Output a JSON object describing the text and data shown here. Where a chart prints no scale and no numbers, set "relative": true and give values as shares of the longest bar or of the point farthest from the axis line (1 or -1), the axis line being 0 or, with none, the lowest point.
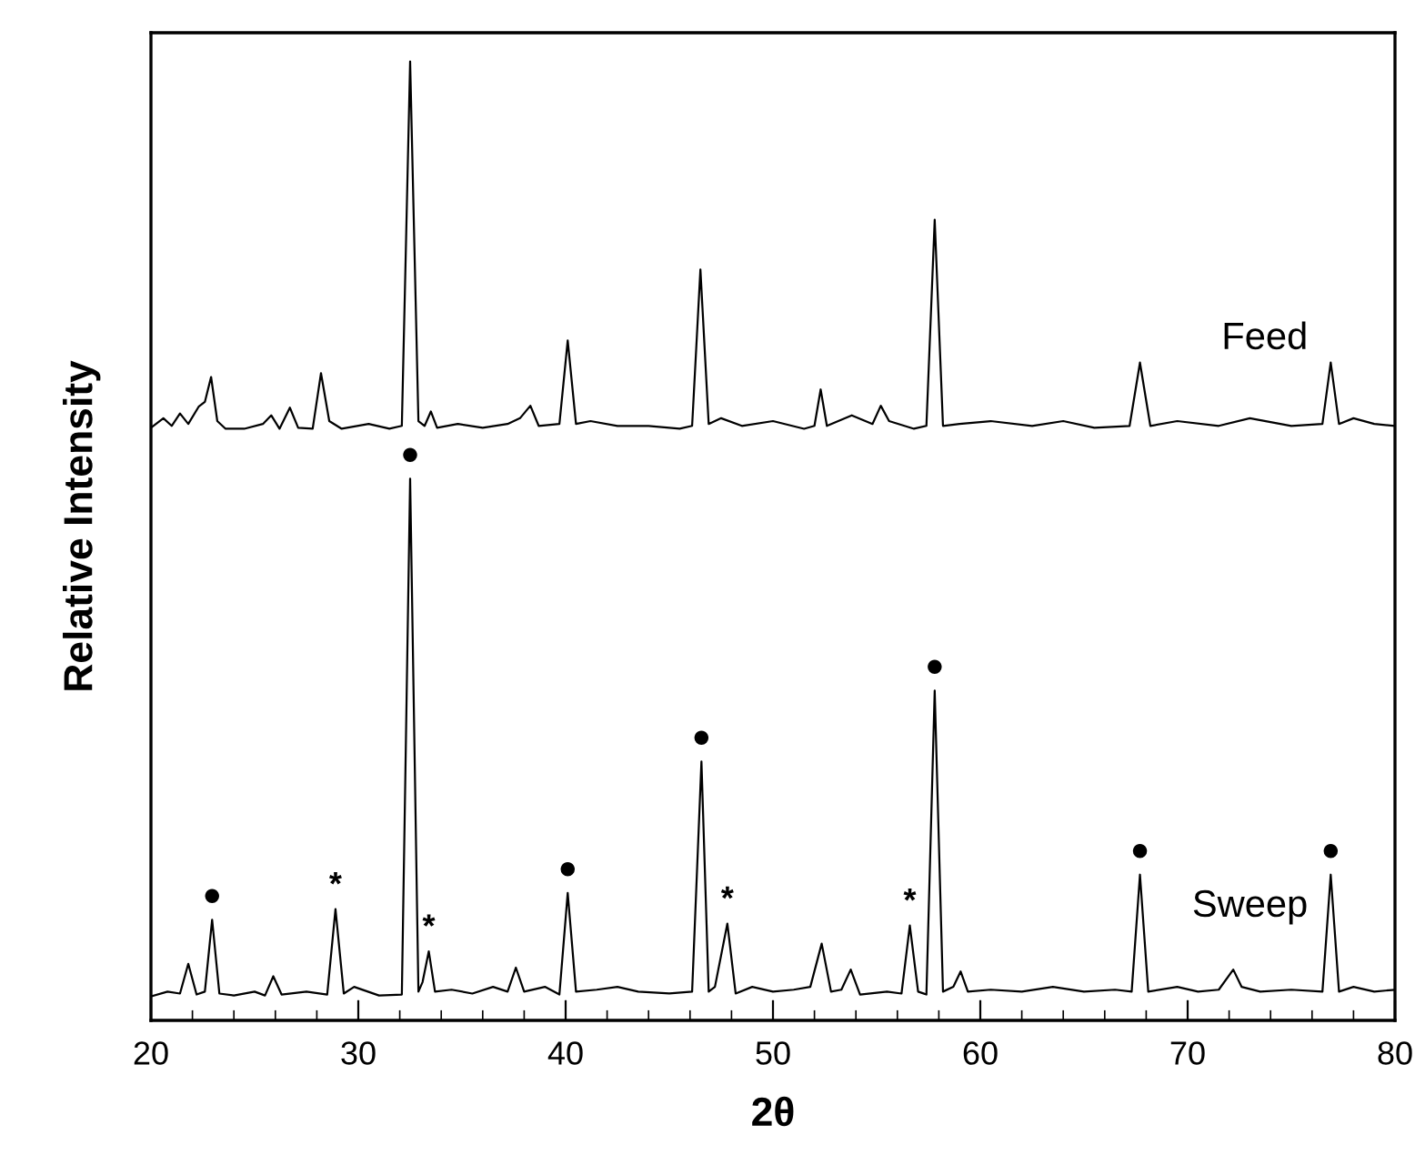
{
  "chart_data": {
    "type": "line",
    "relative": true,
    "xlabel": "2θ",
    "ylabel": "Relative Intensity",
    "xlim": [
      20,
      80
    ],
    "xticks": [
      20,
      30,
      40,
      50,
      60,
      70,
      80
    ],
    "tick_labels": "x",
    "legend": false,
    "grid": false,
    "marker": "none",
    "line_style": "solid",
    "series": [
      {
        "name": "Feed",
        "color": "#000000",
        "x": [
          20,
          20.6,
          21.0,
          21.4,
          21.8,
          22.3,
          22.6,
          22.9,
          23.2,
          23.6,
          24.5,
          25.4,
          25.8,
          26.2,
          26.7,
          27.1,
          27.8,
          28.2,
          28.6,
          29.2,
          30.5,
          31.5,
          32.1,
          32.5,
          32.9,
          33.2,
          33.5,
          33.8,
          34.8,
          36.0,
          37.2,
          37.8,
          38.3,
          38.7,
          39.7,
          40.1,
          40.5,
          41.2,
          42.5,
          44.0,
          45.5,
          46.1,
          46.5,
          46.9,
          47.5,
          48.5,
          50.0,
          51.5,
          52.0,
          52.3,
          52.6,
          53.8,
          54.8,
          55.2,
          55.6,
          56.8,
          57.4,
          57.8,
          58.2,
          59.0,
          60.5,
          62.5,
          64.0,
          65.5,
          67.2,
          67.7,
          68.2,
          69.5,
          71.5,
          73.0,
          75.0,
          76.5,
          76.9,
          77.3,
          78.0,
          79.0,
          80.0
        ],
        "values": [
          0.618,
          0.628,
          0.62,
          0.633,
          0.622,
          0.64,
          0.645,
          0.671,
          0.625,
          0.617,
          0.617,
          0.622,
          0.631,
          0.617,
          0.639,
          0.618,
          0.617,
          0.675,
          0.625,
          0.617,
          0.622,
          0.617,
          0.62,
          1.0,
          0.625,
          0.62,
          0.635,
          0.618,
          0.622,
          0.618,
          0.622,
          0.628,
          0.641,
          0.62,
          0.622,
          0.709,
          0.622,
          0.625,
          0.62,
          0.62,
          0.617,
          0.62,
          0.783,
          0.622,
          0.628,
          0.62,
          0.625,
          0.617,
          0.62,
          0.658,
          0.62,
          0.631,
          0.622,
          0.641,
          0.625,
          0.617,
          0.62,
          0.835,
          0.62,
          0.622,
          0.625,
          0.62,
          0.625,
          0.618,
          0.62,
          0.686,
          0.62,
          0.625,
          0.62,
          0.628,
          0.62,
          0.622,
          0.686,
          0.622,
          0.628,
          0.622,
          0.62
        ]
      },
      {
        "name": "Sweep",
        "color": "#000000",
        "x": [
          20,
          20.8,
          21.4,
          21.8,
          22.2,
          22.6,
          22.95,
          23.3,
          24.0,
          25.0,
          25.5,
          25.9,
          26.3,
          27.5,
          28.5,
          28.9,
          29.3,
          29.8,
          31.0,
          32.1,
          32.5,
          32.9,
          33.1,
          33.4,
          33.7,
          34.5,
          35.5,
          36.5,
          37.2,
          37.6,
          38.0,
          39.0,
          39.7,
          40.1,
          40.5,
          41.5,
          42.5,
          43.5,
          45.0,
          46.1,
          46.55,
          46.9,
          47.2,
          47.8,
          48.2,
          49.0,
          50.0,
          51.0,
          51.8,
          52.35,
          52.8,
          53.3,
          53.75,
          54.2,
          55.5,
          56.2,
          56.6,
          57.0,
          57.4,
          57.8,
          58.2,
          58.7,
          59.05,
          59.4,
          60.5,
          62.0,
          63.5,
          65.0,
          66.5,
          67.3,
          67.7,
          68.1,
          69.5,
          70.5,
          71.5,
          72.2,
          72.6,
          73.5,
          75.0,
          76.5,
          76.9,
          77.3,
          78.0,
          79.0,
          80.0
        ],
        "values": [
          0.025,
          0.03,
          0.028,
          0.059,
          0.027,
          0.03,
          0.105,
          0.028,
          0.026,
          0.03,
          0.026,
          0.046,
          0.027,
          0.03,
          0.027,
          0.116,
          0.028,
          0.035,
          0.026,
          0.027,
          0.565,
          0.03,
          0.04,
          0.072,
          0.03,
          0.032,
          0.028,
          0.035,
          0.03,
          0.055,
          0.03,
          0.035,
          0.027,
          0.133,
          0.03,
          0.032,
          0.035,
          0.03,
          0.028,
          0.03,
          0.27,
          0.03,
          0.035,
          0.101,
          0.028,
          0.035,
          0.03,
          0.032,
          0.035,
          0.08,
          0.03,
          0.032,
          0.053,
          0.027,
          0.03,
          0.028,
          0.099,
          0.03,
          0.027,
          0.344,
          0.03,
          0.035,
          0.051,
          0.03,
          0.032,
          0.03,
          0.035,
          0.03,
          0.032,
          0.03,
          0.152,
          0.03,
          0.035,
          0.03,
          0.032,
          0.053,
          0.035,
          0.03,
          0.032,
          0.03,
          0.152,
          0.03,
          0.035,
          0.03,
          0.032
        ]
      }
    ],
    "annotations": [
      {
        "text": "●",
        "x": 22.95,
        "y": 0.105
      },
      {
        "text": "●",
        "x": 32.5,
        "y": 0.565
      },
      {
        "text": "●",
        "x": 40.1,
        "y": 0.133
      },
      {
        "text": "●",
        "x": 46.55,
        "y": 0.27
      },
      {
        "text": "●",
        "x": 57.8,
        "y": 0.344
      },
      {
        "text": "●",
        "x": 67.7,
        "y": 0.152
      },
      {
        "text": "●",
        "x": 76.9,
        "y": 0.152
      },
      {
        "text": "*",
        "x": 28.9,
        "y": 0.116
      },
      {
        "text": "*",
        "x": 33.4,
        "y": 0.072
      },
      {
        "text": "*",
        "x": 47.8,
        "y": 0.101
      },
      {
        "text": "*",
        "x": 56.6,
        "y": 0.099
      }
    ]
  }
}
